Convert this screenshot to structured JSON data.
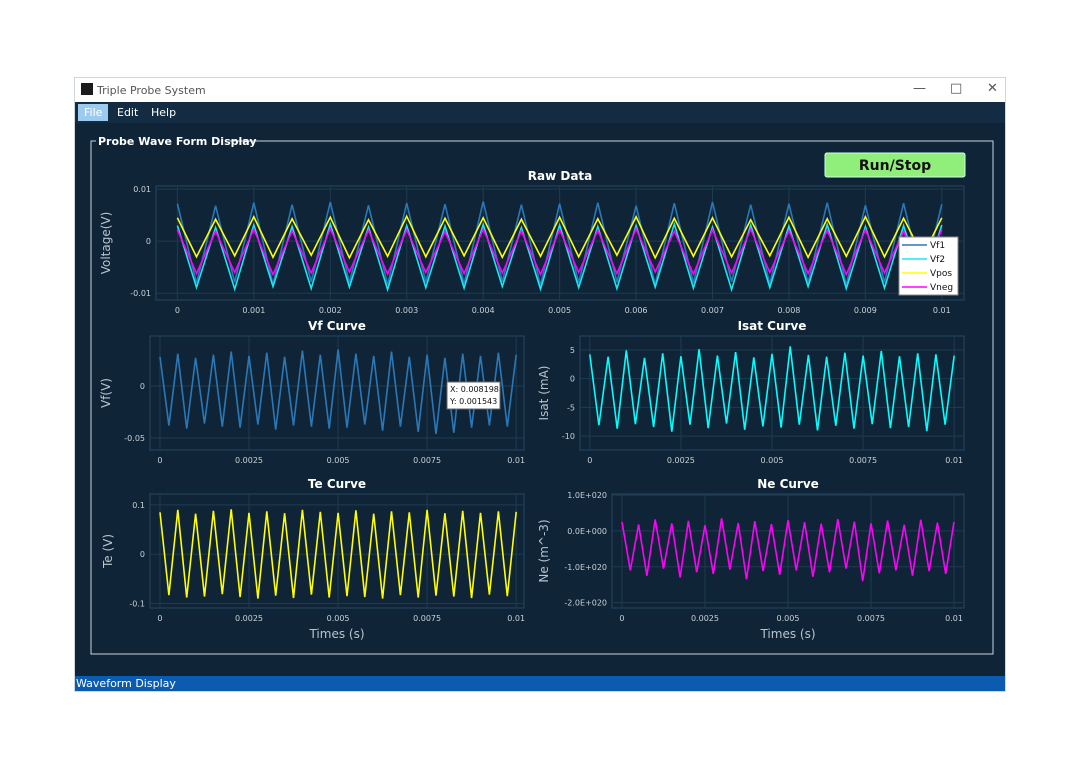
{
  "window": {
    "title": "Triple Probe System",
    "menu": [
      "File",
      "Edit",
      "Help"
    ],
    "group_title": "Probe Wave Form Display",
    "button": "Run/Stop",
    "status": "Waveform Display"
  },
  "chart_data": [
    {
      "type": "line",
      "title": "Raw Data",
      "ylabel": "Voltage(V)",
      "grid": true,
      "legend": "right",
      "x": [
        0,
        0.00025,
        0.0005,
        0.00075,
        0.001,
        0.00125,
        0.0015,
        0.00175,
        0.002,
        0.00225,
        0.0025,
        0.00275,
        0.003,
        0.00325,
        0.0035,
        0.00375,
        0.004,
        0.00425,
        0.0045,
        0.00475,
        0.005,
        0.00525,
        0.0055,
        0.00575,
        0.006,
        0.00625,
        0.0065,
        0.00675,
        0.007,
        0.00725,
        0.0075,
        0.00775,
        0.008,
        0.00825,
        0.0085,
        0.00875,
        0.009,
        0.00925,
        0.0095,
        0.00975,
        0.01
      ],
      "series": [
        {
          "name": "Vf1",
          "color": "#2a78b8",
          "values": [
            0.0072,
            -0.0081,
            0.0068,
            -0.0079,
            0.0074,
            -0.0083,
            0.007,
            -0.0078,
            0.0075,
            -0.008,
            0.0069,
            -0.0084,
            0.0073,
            -0.0079,
            0.0071,
            -0.0082,
            0.0076,
            -0.0078,
            0.007,
            -0.0085,
            0.0072,
            -0.008,
            0.0074,
            -0.0079,
            0.0068,
            -0.0083,
            0.0073,
            -0.0081,
            0.0075,
            -0.0078,
            0.007,
            -0.0082,
            0.0072,
            -0.008,
            0.0074,
            -0.0084,
            0.0069,
            -0.0079,
            0.0073,
            -0.0081,
            0.0071
          ]
        },
        {
          "name": "Vf2",
          "color": "#19e6ef",
          "values": [
            0.003,
            -0.0089,
            0.0026,
            -0.0092,
            0.0031,
            -0.0087,
            0.0028,
            -0.0091,
            0.0033,
            -0.0088,
            0.0027,
            -0.0093,
            0.003,
            -0.0089,
            0.0029,
            -0.009,
            0.0032,
            -0.0087,
            0.0026,
            -0.0092,
            0.0031,
            -0.0089,
            0.0028,
            -0.0091,
            0.003,
            -0.0088,
            0.0033,
            -0.009,
            0.0027,
            -0.0093,
            0.0031,
            -0.0089,
            0.0029,
            -0.0087,
            0.0032,
            -0.0091,
            0.0028,
            -0.009,
            0.003,
            -0.0088,
            0.0031
          ]
        },
        {
          "name": "Vpos",
          "color": "#ffff00",
          "values": [
            0.0045,
            -0.003,
            0.0042,
            -0.0028,
            0.0047,
            -0.0031,
            0.0043,
            -0.0027,
            0.0046,
            -0.0032,
            0.0041,
            -0.0029,
            0.0048,
            -0.003,
            0.0044,
            -0.0028,
            0.0045,
            -0.0031,
            0.0042,
            -0.0029,
            0.0046,
            -0.003,
            0.0043,
            -0.0027,
            0.0047,
            -0.0032,
            0.0044,
            -0.0029,
            0.0045,
            -0.003,
            0.0041,
            -0.0028,
            0.0046,
            -0.0031,
            0.0043,
            -0.0029,
            0.0047,
            -0.003,
            0.0044,
            -0.0028,
            0.0045
          ]
        },
        {
          "name": "Vneg",
          "color": "#ff00ff",
          "values": [
            0.0022,
            -0.0062,
            0.0019,
            -0.006,
            0.0023,
            -0.0064,
            0.002,
            -0.0061,
            0.0024,
            -0.0059,
            0.0021,
            -0.0063,
            0.0022,
            -0.006,
            0.0018,
            -0.0062,
            0.0023,
            -0.0061,
            0.002,
            -0.0064,
            0.0022,
            -0.006,
            0.0021,
            -0.0062,
            0.0024,
            -0.0059,
            0.0019,
            -0.0063,
            0.0022,
            -0.0061,
            0.0023,
            -0.006,
            0.002,
            -0.0062,
            0.0021,
            -0.0064,
            0.0022,
            -0.0061,
            0.0019,
            -0.006,
            0.0022
          ]
        }
      ],
      "xlim": [
        -0.00028,
        0.01029
      ],
      "ylim": [
        -0.0113,
        0.0106
      ],
      "xticks": [
        0,
        0.001,
        0.002,
        0.003,
        0.004,
        0.005,
        0.006,
        0.007,
        0.008,
        0.009,
        0.01
      ],
      "yticks": [
        0.01,
        0,
        -0.01
      ]
    },
    {
      "type": "line",
      "title": "Vf Curve",
      "ylabel": "Vf(V)",
      "grid": true,
      "color": "#2a78b8",
      "annotations": [
        "X: 0.008198",
        "Y: 0.001543"
      ],
      "x": [
        0,
        0.00025,
        0.0005,
        0.00075,
        0.001,
        0.00125,
        0.0015,
        0.00175,
        0.002,
        0.00225,
        0.0025,
        0.00275,
        0.003,
        0.00325,
        0.0035,
        0.00375,
        0.004,
        0.00425,
        0.0045,
        0.00475,
        0.005,
        0.00525,
        0.0055,
        0.00575,
        0.006,
        0.00625,
        0.0065,
        0.00675,
        0.007,
        0.00725,
        0.0075,
        0.00775,
        0.008,
        0.00825,
        0.0085,
        0.00875,
        0.009,
        0.00925,
        0.0095,
        0.00975,
        0.01
      ],
      "values": [
        0.028,
        -0.038,
        0.031,
        -0.041,
        0.027,
        -0.036,
        0.03,
        -0.039,
        0.033,
        -0.04,
        0.029,
        -0.037,
        0.032,
        -0.042,
        0.028,
        -0.038,
        0.034,
        -0.039,
        0.03,
        -0.041,
        0.035,
        -0.04,
        0.031,
        -0.037,
        0.029,
        -0.043,
        0.033,
        -0.039,
        0.028,
        -0.044,
        0.03,
        -0.046,
        0.027,
        -0.045,
        0.031,
        -0.04,
        0.029,
        -0.038,
        0.032,
        -0.039,
        0.03
      ],
      "xlim": [
        -0.00028,
        0.01022
      ],
      "ylim": [
        -0.0615,
        0.048
      ],
      "xticks": [
        0,
        0.0025,
        0.005,
        0.0075,
        0.01
      ],
      "yticks": [
        0,
        -0.05
      ]
    },
    {
      "type": "line",
      "title": "Isat Curve",
      "ylabel": "Isat (mA)",
      "grid": true,
      "color": "#00ffff",
      "x": [
        0,
        0.00025,
        0.0005,
        0.00075,
        0.001,
        0.00125,
        0.0015,
        0.00175,
        0.002,
        0.00225,
        0.0025,
        0.00275,
        0.003,
        0.00325,
        0.0035,
        0.00375,
        0.004,
        0.00425,
        0.0045,
        0.00475,
        0.005,
        0.00525,
        0.0055,
        0.00575,
        0.006,
        0.00625,
        0.0065,
        0.00675,
        0.007,
        0.00725,
        0.0075,
        0.00775,
        0.008,
        0.00825,
        0.0085,
        0.00875,
        0.009,
        0.00925,
        0.0095,
        0.00975,
        0.01
      ],
      "values": [
        4.2,
        -8.1,
        3.8,
        -8.7,
        4.9,
        -7.9,
        3.6,
        -8.4,
        4.4,
        -9.2,
        3.9,
        -8.0,
        5.1,
        -8.6,
        4.0,
        -7.8,
        4.6,
        -8.9,
        3.7,
        -8.3,
        4.3,
        -8.5,
        5.6,
        -8.0,
        4.1,
        -9.0,
        3.8,
        -8.2,
        4.5,
        -8.7,
        4.0,
        -7.9,
        4.8,
        -8.6,
        3.9,
        -8.4,
        4.4,
        -9.1,
        4.2,
        -8.0,
        4.0
      ],
      "xlim": [
        -0.00027,
        0.01027
      ],
      "ylim": [
        -12.4,
        7.4
      ],
      "xticks": [
        0,
        0.0025,
        0.005,
        0.0075,
        0.01
      ],
      "yticks": [
        5,
        0,
        -5,
        -10
      ]
    },
    {
      "type": "line",
      "title": "Te Curve",
      "ylabel": "Te (V)",
      "xlabel": "Times (s)",
      "grid": true,
      "color": "#ffff00",
      "x": [
        0,
        0.00025,
        0.0005,
        0.00075,
        0.001,
        0.00125,
        0.0015,
        0.00175,
        0.002,
        0.00225,
        0.0025,
        0.00275,
        0.003,
        0.00325,
        0.0035,
        0.00375,
        0.004,
        0.00425,
        0.0045,
        0.00475,
        0.005,
        0.00525,
        0.0055,
        0.00575,
        0.006,
        0.00625,
        0.0065,
        0.00675,
        0.007,
        0.00725,
        0.0075,
        0.00775,
        0.008,
        0.00825,
        0.0085,
        0.00875,
        0.009,
        0.00925,
        0.0095,
        0.00975,
        0.01
      ],
      "values": [
        0.085,
        -0.083,
        0.09,
        -0.088,
        0.082,
        -0.086,
        0.088,
        -0.081,
        0.091,
        -0.087,
        0.084,
        -0.09,
        0.087,
        -0.084,
        0.083,
        -0.089,
        0.09,
        -0.082,
        0.086,
        -0.088,
        0.084,
        -0.085,
        0.089,
        -0.087,
        0.082,
        -0.09,
        0.087,
        -0.083,
        0.085,
        -0.088,
        0.09,
        -0.084,
        0.083,
        -0.086,
        0.088,
        -0.089,
        0.084,
        -0.082,
        0.087,
        -0.085,
        0.086
      ],
      "xlim": [
        -0.00028,
        0.01022
      ],
      "ylim": [
        -0.109,
        0.122
      ],
      "xticks": [
        0,
        0.0025,
        0.005,
        0.0075,
        0.01
      ],
      "yticks": [
        0.1,
        0,
        -0.1
      ]
    },
    {
      "type": "line",
      "title": "Ne Curve",
      "ylabel": "Ne (m^-3)",
      "xlabel": "Times (s)",
      "grid": true,
      "color": "#ff00ff",
      "x": [
        0,
        0.00025,
        0.0005,
        0.00075,
        0.001,
        0.00125,
        0.0015,
        0.00175,
        0.002,
        0.00225,
        0.0025,
        0.00275,
        0.003,
        0.00325,
        0.0035,
        0.00375,
        0.004,
        0.00425,
        0.0045,
        0.00475,
        0.005,
        0.00525,
        0.0055,
        0.00575,
        0.006,
        0.00625,
        0.0065,
        0.00675,
        0.007,
        0.00725,
        0.0075,
        0.00775,
        0.008,
        0.00825,
        0.0085,
        0.00875,
        0.009,
        0.00925,
        0.0095,
        0.00975,
        0.01
      ],
      "values": [
        2.5e+19,
        -1.1e+20,
        1.8e+19,
        -1.25e+20,
        3.2e+19,
        -1.05e+20,
        2.1e+19,
        -1.3e+20,
        2.8e+19,
        -1.15e+20,
        1.6e+19,
        -1.2e+20,
        3.5e+19,
        -1.08e+20,
        2.2e+19,
        -1.35e+20,
        2.7e+19,
        -1.12e+20,
        1.9e+19,
        -1.22e+20,
        3e+19,
        -1.1e+20,
        2.4e+19,
        -1.28e+20,
        2e+19,
        -1.15e+20,
        3.3e+19,
        -1.05e+20,
        2.6e+19,
        -1.4e+20,
        2.1e+19,
        -1.18e+20,
        2.9e+19,
        -1.1e+20,
        1.7e+19,
        -1.25e+20,
        3.1e+19,
        -1.12e+20,
        2.3e+19,
        -1.2e+20,
        2.5e+19
      ],
      "xlim": [
        -0.0003,
        0.0103
      ],
      "ylim": [
        -2.15e+20,
        1.03e+20
      ],
      "xticks": [
        0,
        0.0025,
        0.005,
        0.0075,
        0.01
      ],
      "yticks": [
        {
          "value": 1e+20,
          "label": "1.0E+020"
        },
        {
          "value": 0,
          "label": "0.0E+000"
        },
        {
          "value": -1e+20,
          "label": "-1.0E+020"
        },
        {
          "value": -2e+20,
          "label": "-2.0E+020"
        }
      ]
    }
  ]
}
